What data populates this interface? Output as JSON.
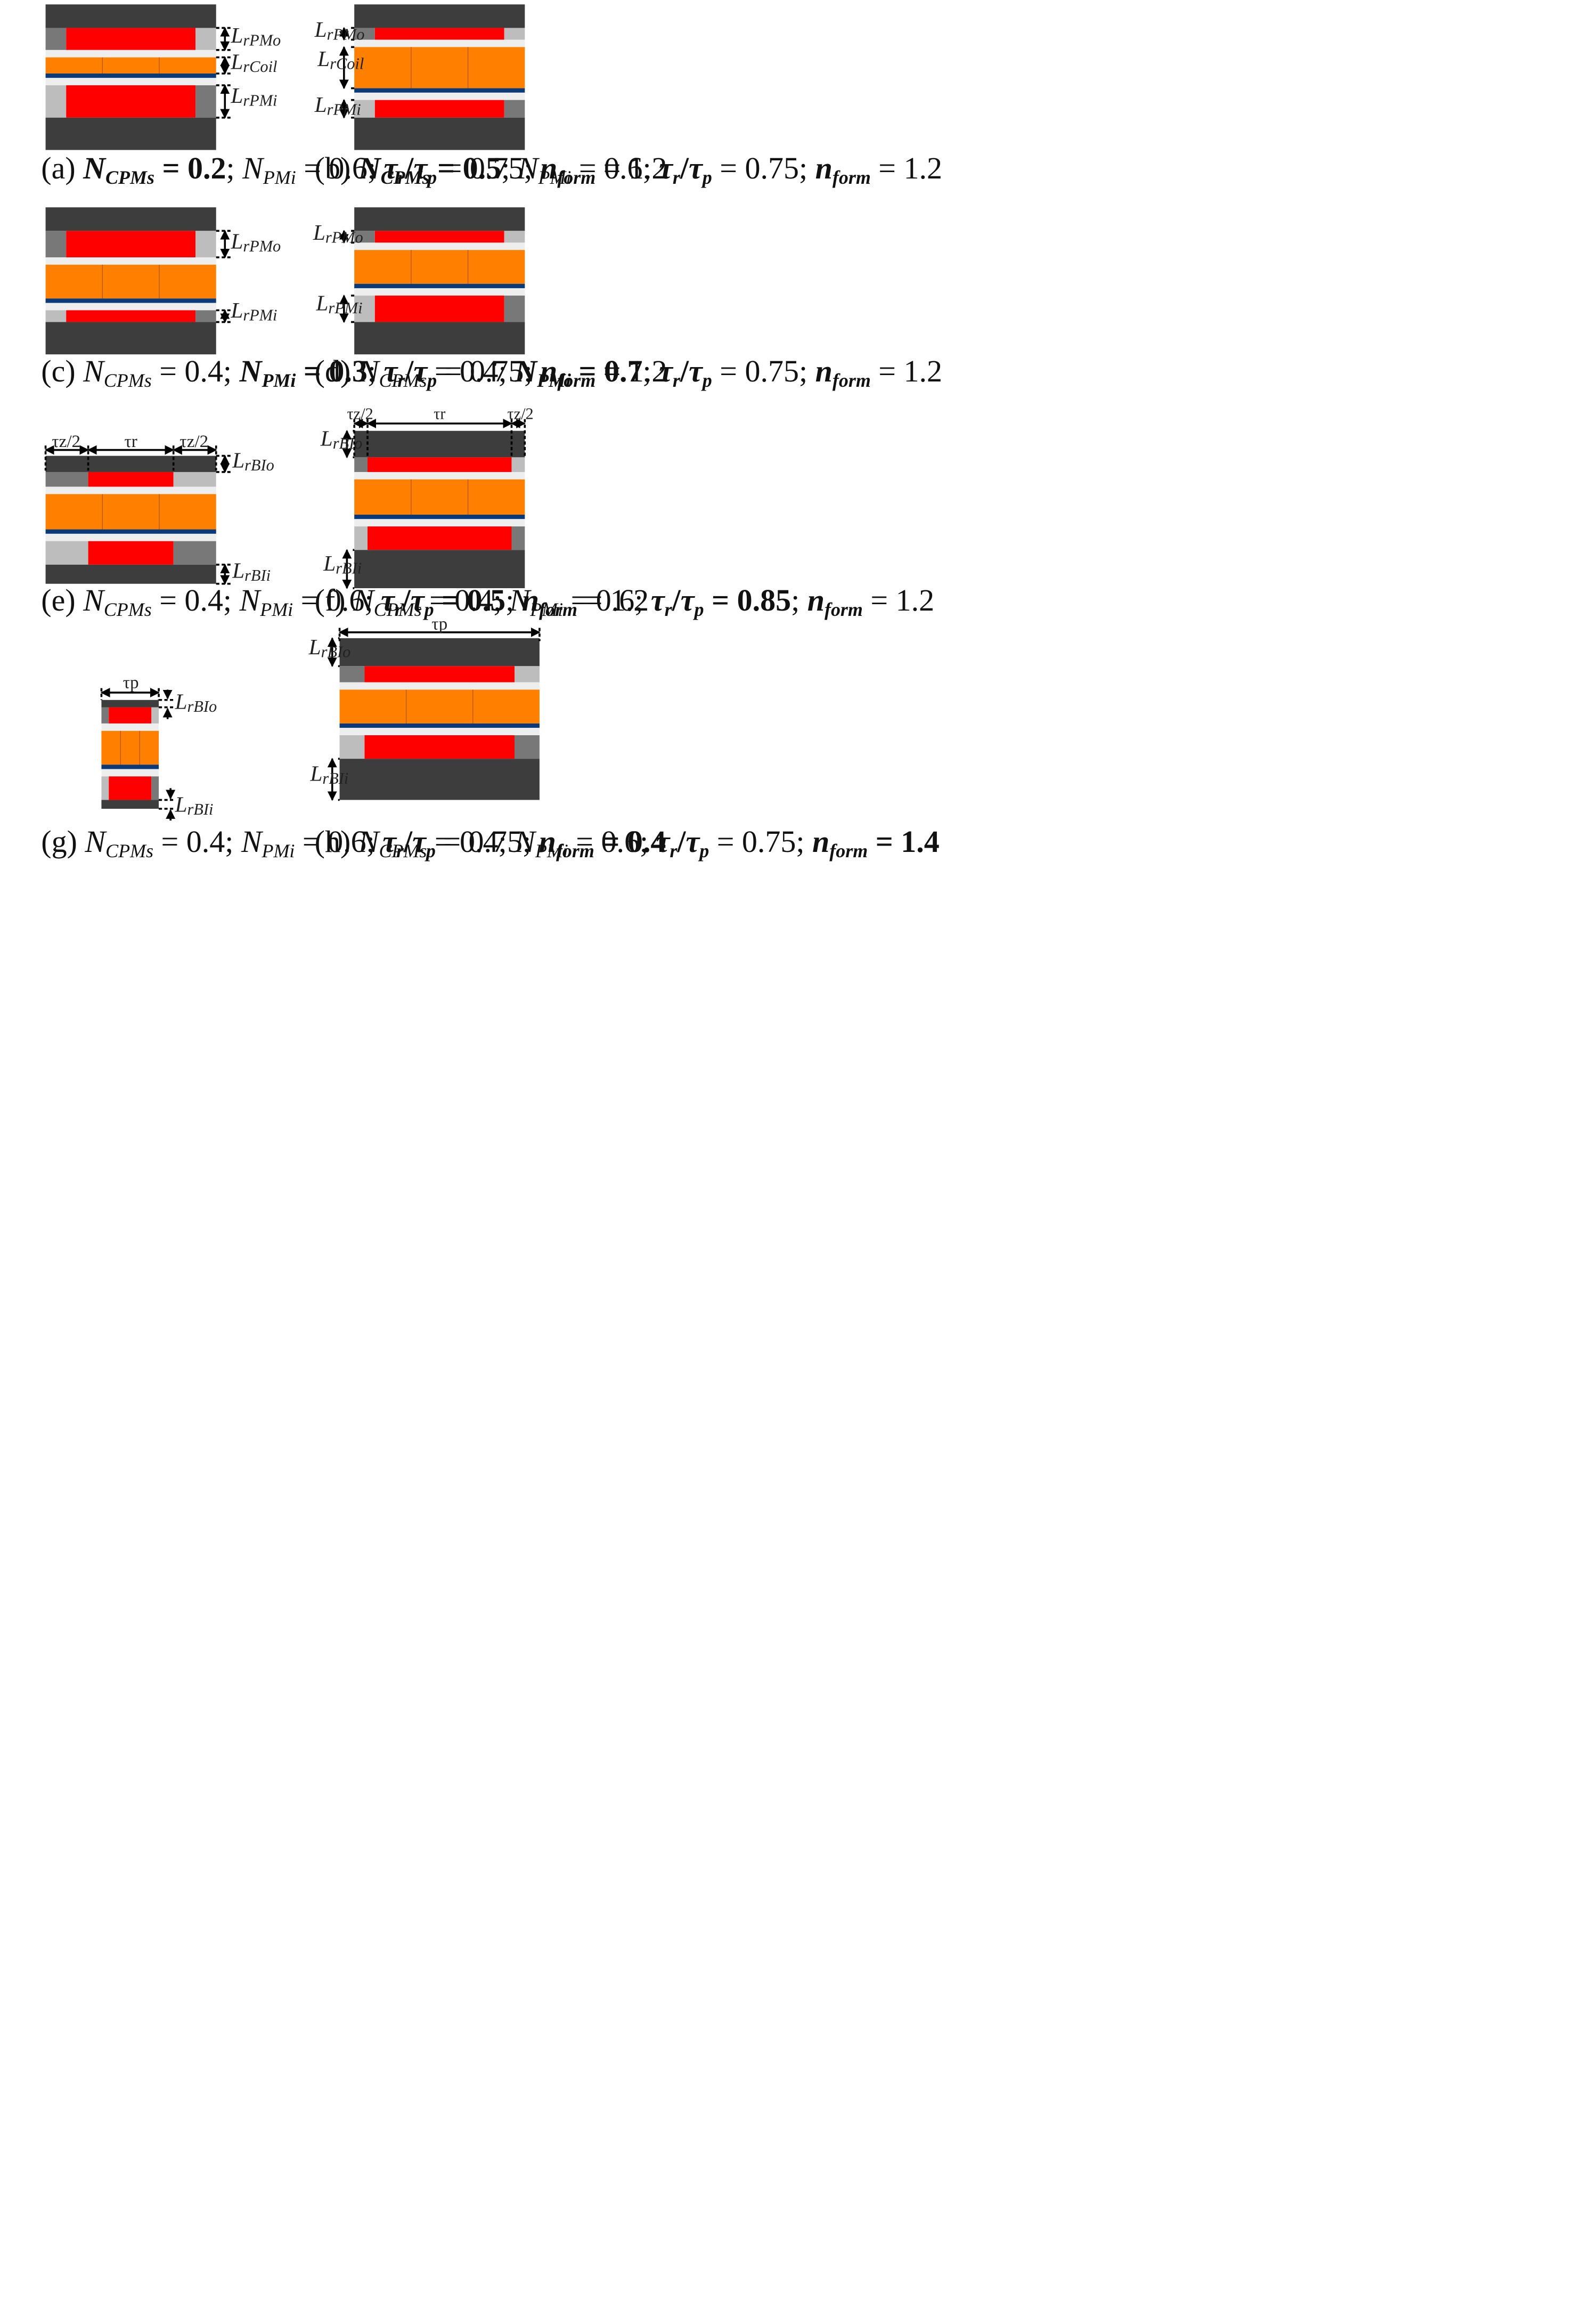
{
  "colors": {
    "core": "#3d3d3d",
    "magnet": "#ff0000",
    "coil": "#ff7f00",
    "coil_divider": "#a84f00",
    "back_iron_strip": "#0b3a7a",
    "gap": "#eeeeee",
    "side_dark": "#787878",
    "side_light": "#bdbdbd",
    "dim_line": "#000000"
  },
  "panels": [
    {
      "id": "a",
      "labels": {
        "pmo": "LrPMo",
        "coil": "LrCoil",
        "pmi": "LrPMi"
      },
      "caption": [
        "(a) ",
        {
          "v": "N",
          "sub": "CPMs",
          "b": true
        },
        {
          "t": " = 0.2",
          "b": true
        },
        "; ",
        {
          "v": "N",
          "sub": "PMi"
        },
        " = 0.6; ",
        {
          "v": "τ",
          "sub": "r",
          "b": true
        },
        {
          "t": "/",
          "b": true
        },
        {
          "v": "τ",
          "sub": "p",
          "b": true
        },
        " = 0.75; ",
        {
          "v": "n",
          "sub": "form",
          "b": true
        },
        " = 1.2"
      ]
    },
    {
      "id": "b",
      "labels": {
        "pmo": "LrPMo",
        "coil": "LrCoil",
        "pmi": "LrPMi"
      },
      "caption": [
        "(b) ",
        {
          "v": "N",
          "sub": "CPMs",
          "b": true
        },
        {
          "t": " = 0.5",
          "b": true
        },
        "; ",
        {
          "v": "N",
          "sub": "PMi"
        },
        " = 0.6; ",
        {
          "v": "τ",
          "sub": "r",
          "b": true
        },
        {
          "t": "/",
          "b": true
        },
        {
          "v": "τ",
          "sub": "p",
          "b": true
        },
        " = 0.75; ",
        {
          "v": "n",
          "sub": "form",
          "b": true
        },
        " = 1.2"
      ]
    },
    {
      "id": "c",
      "labels": {
        "pmo": "LrPMo",
        "pmi": "LrPMi"
      },
      "caption": [
        "(c) ",
        {
          "v": "N",
          "sub": "CPMs"
        },
        " = 0.4; ",
        {
          "v": "N",
          "sub": "PMi",
          "b": true
        },
        {
          "t": " = 0.3",
          "b": true
        },
        "; ",
        {
          "v": "τ",
          "sub": "r",
          "b": true
        },
        {
          "t": "/",
          "b": true
        },
        {
          "v": "τ",
          "sub": "p",
          "b": true
        },
        " = 0.75; ",
        {
          "v": "n",
          "sub": "form",
          "b": true
        },
        " = 1.2"
      ]
    },
    {
      "id": "d",
      "labels": {
        "pmo": "LrPMo",
        "pmi": "LrPMi"
      },
      "caption": [
        "(d) ",
        {
          "v": "N",
          "sub": "CPMs"
        },
        " = 0.4; ",
        {
          "v": "N",
          "sub": "PMi",
          "b": true
        },
        {
          "t": " = 0.7",
          "b": true
        },
        "; ",
        {
          "v": "τ",
          "sub": "r",
          "b": true
        },
        {
          "t": "/",
          "b": true
        },
        {
          "v": "τ",
          "sub": "p",
          "b": true
        },
        " = 0.75; ",
        {
          "v": "n",
          "sub": "form",
          "b": true
        },
        " = 1.2"
      ]
    },
    {
      "id": "e",
      "labels": {
        "tz": "τz/2",
        "tr": "τr",
        "bio": "LrBIo",
        "bii": "LrBIi"
      },
      "caption": [
        "(e) ",
        {
          "v": "N",
          "sub": "CPMs"
        },
        " = 0.4; ",
        {
          "v": "N",
          "sub": "PMi"
        },
        " = 0.6; ",
        {
          "v": "τ",
          "sub": "r",
          "b": true
        },
        {
          "t": "/",
          "b": true
        },
        {
          "v": "τ",
          "sub": "p",
          "b": true
        },
        {
          "t": " = 0.5",
          "b": true
        },
        "; ",
        {
          "v": "n",
          "sub": "form",
          "b": true
        },
        " = 1.2"
      ]
    },
    {
      "id": "f",
      "labels": {
        "tz": "τz/2",
        "tr": "τr",
        "bio": "LrBIo",
        "bii": "LrBIi"
      },
      "caption": [
        "(f) ",
        {
          "v": "N",
          "sub": "CPMs"
        },
        " = 0.4; ",
        {
          "v": "N",
          "sub": "PMi"
        },
        " = 0.6; ",
        {
          "v": "τ",
          "sub": "r",
          "b": true
        },
        {
          "t": "/",
          "b": true
        },
        {
          "v": "τ",
          "sub": "p",
          "b": true
        },
        {
          "t": " = 0.85",
          "b": true
        },
        "; ",
        {
          "v": "n",
          "sub": "form",
          "b": true
        },
        " = 1.2"
      ]
    },
    {
      "id": "g",
      "labels": {
        "tp": "τp",
        "bio": "LrBIo",
        "bii": "LrBIi"
      },
      "caption": [
        "(g) ",
        {
          "v": "N",
          "sub": "CPMs"
        },
        " = 0.4; ",
        {
          "v": "N",
          "sub": "PMi"
        },
        " = 0.6; ",
        {
          "v": "τ",
          "sub": "r",
          "b": true
        },
        {
          "t": "/",
          "b": true
        },
        {
          "v": "τ",
          "sub": "p",
          "b": true
        },
        " = 0.75; ",
        {
          "v": "n",
          "sub": "form",
          "b": true
        },
        {
          "t": " = 0.4",
          "b": true
        }
      ]
    },
    {
      "id": "h",
      "labels": {
        "tp": "τp",
        "bio": "LrBIo",
        "bii": "LrBIi"
      },
      "caption": [
        "(h) ",
        {
          "v": "N",
          "sub": "CPMs"
        },
        " = 0.4; ",
        {
          "v": "N",
          "sub": "PMi"
        },
        " = 0.6; ",
        {
          "v": "τ",
          "sub": "r",
          "b": true
        },
        {
          "t": "/",
          "b": true
        },
        {
          "v": "τ",
          "sub": "p",
          "b": true
        },
        " = 0.75; ",
        {
          "v": "n",
          "sub": "form",
          "b": true
        },
        {
          "t": " = 1.4",
          "b": true
        }
      ]
    }
  ]
}
